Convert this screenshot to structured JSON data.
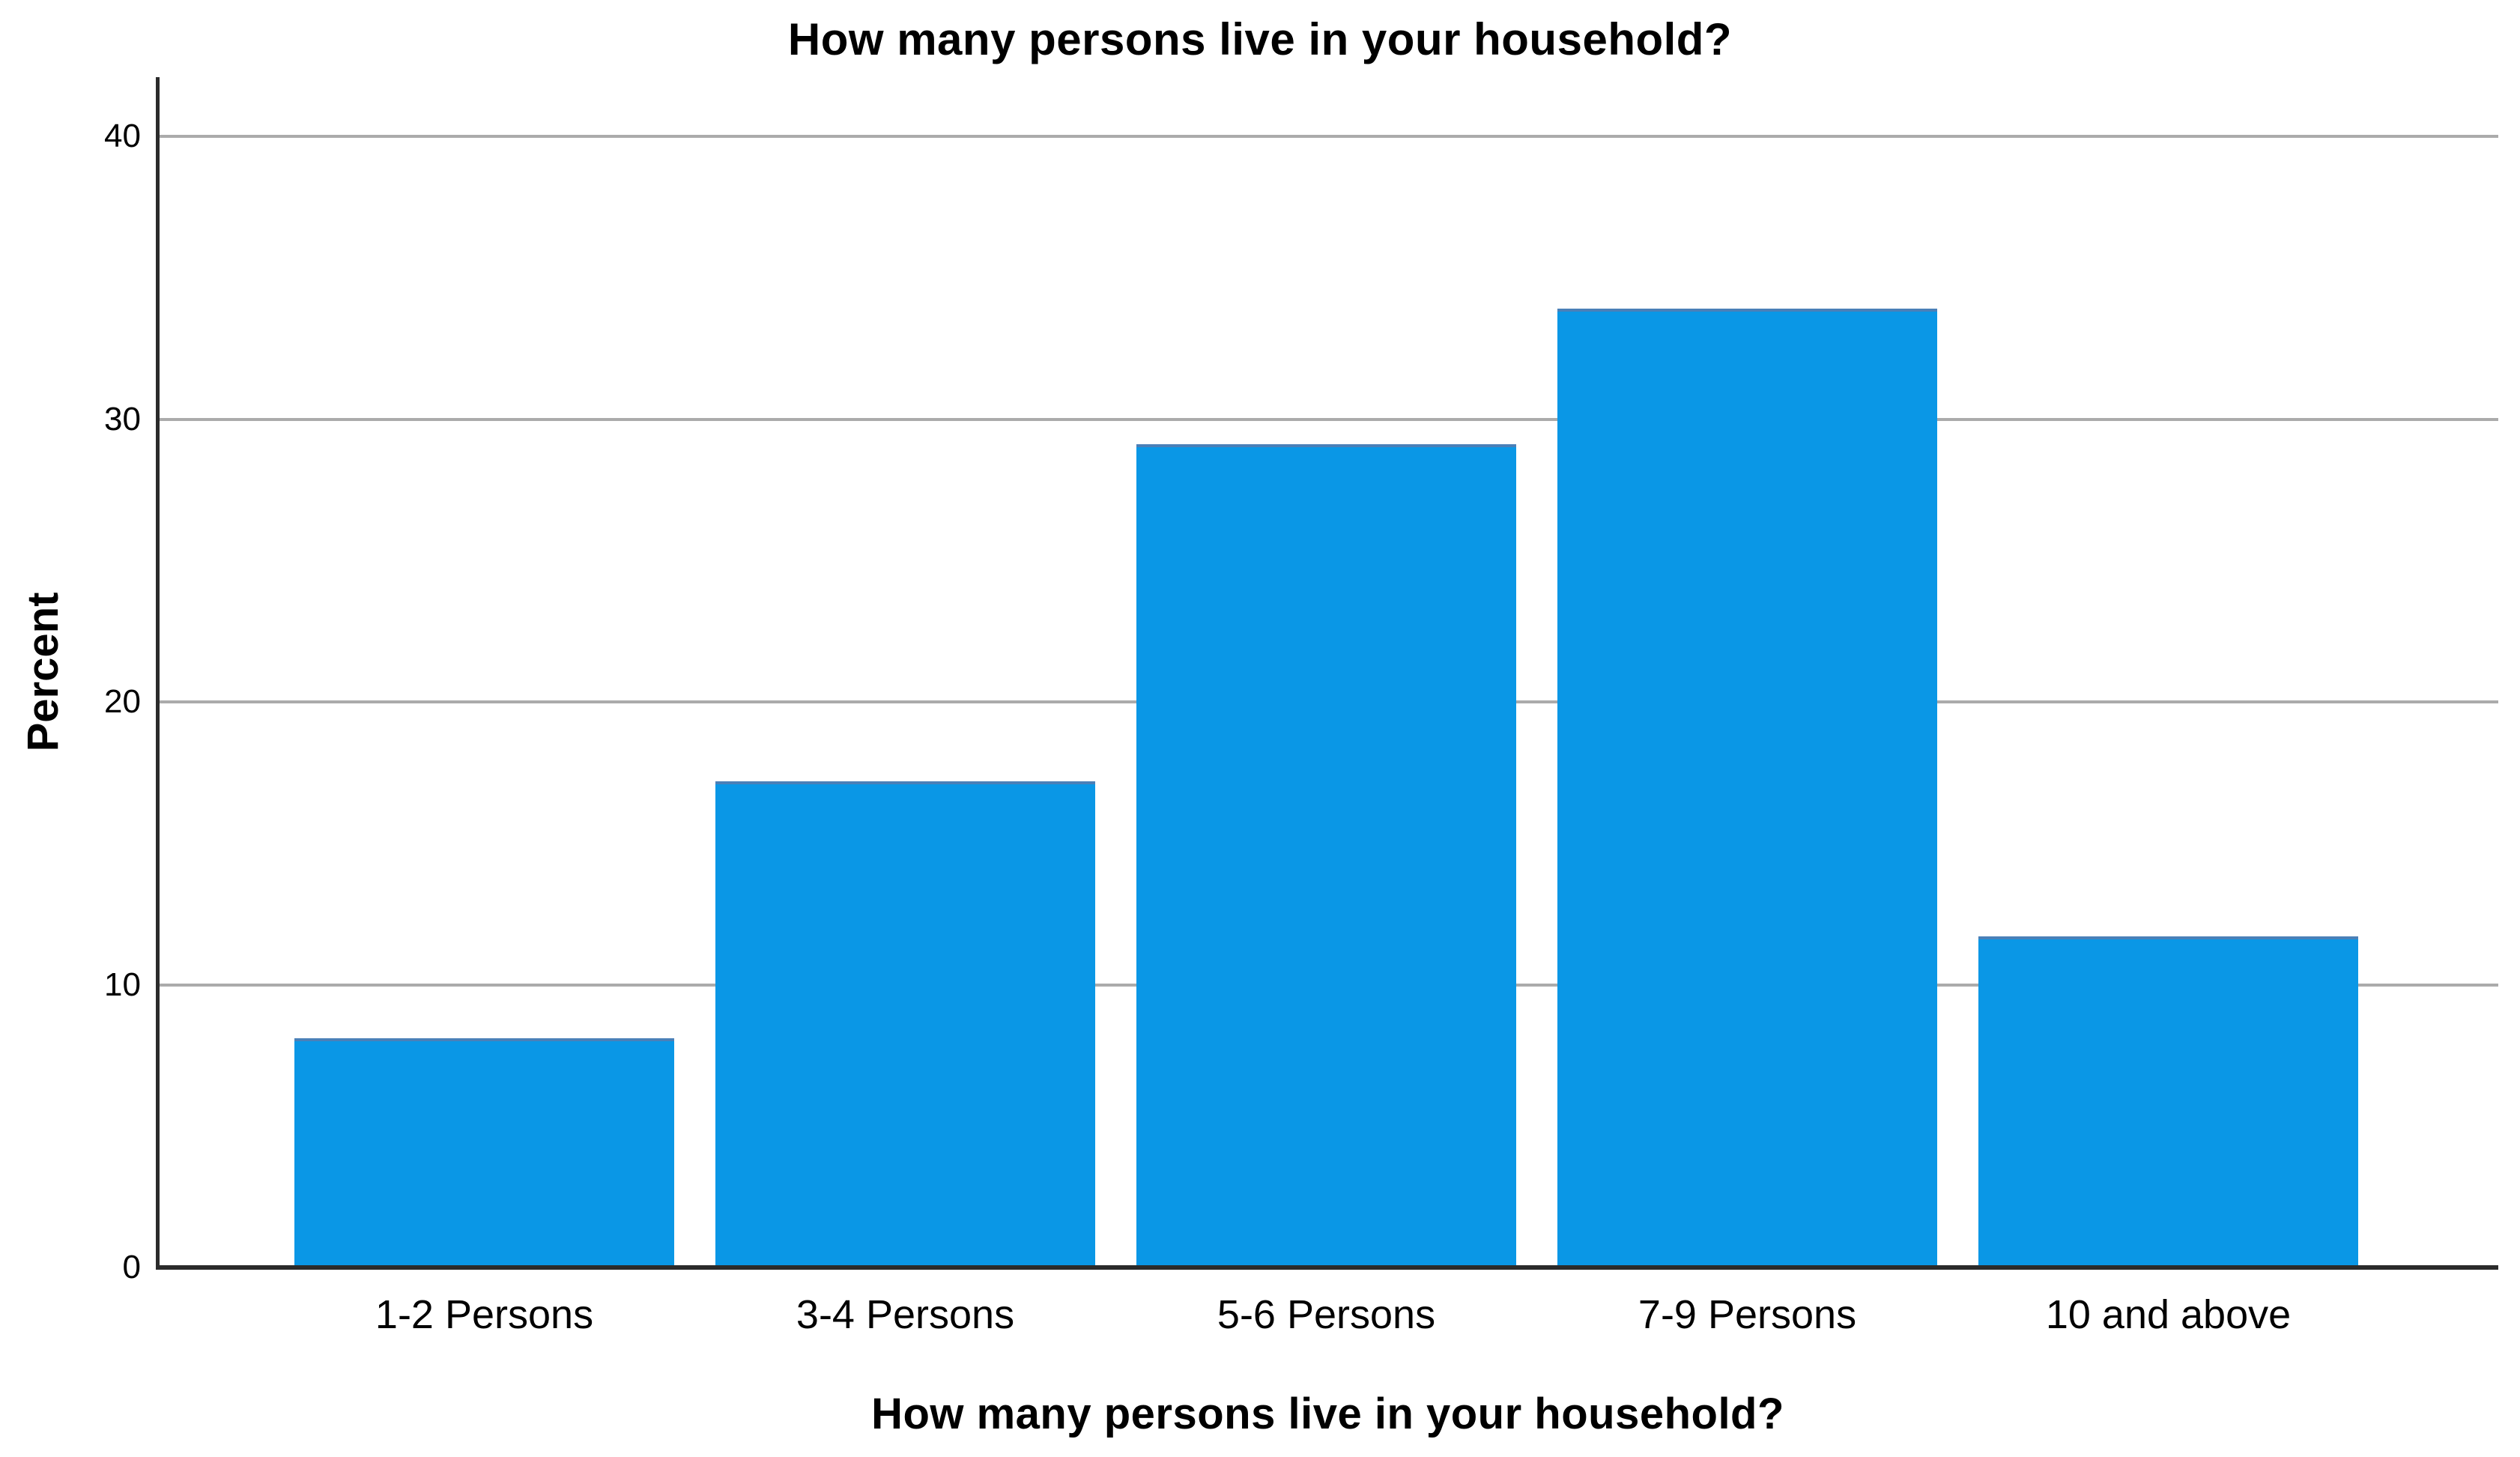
{
  "chart_data": {
    "type": "bar",
    "title": "How many persons live in your household?",
    "xlabel": "How many persons live in your household?",
    "ylabel": "Percent",
    "categories": [
      "1-2 Persons",
      "3-4 Persons",
      "5-6 Persons",
      "7-9 Persons",
      "10 and above"
    ],
    "values": [
      8.1,
      17.2,
      29.1,
      33.9,
      11.7
    ],
    "yticks": [
      0,
      10,
      20,
      30,
      40
    ],
    "ylim": [
      0,
      42
    ],
    "grid": "horizontal-gray-lines",
    "legend": "none",
    "bar_color": "#0A97E6",
    "bar_top_edge_color": "#4A80B8",
    "gridline_color": "#ABABAB",
    "axis_color": "#2B2B2B",
    "text_color": "#000000",
    "background_color": "#FFFFFF"
  }
}
